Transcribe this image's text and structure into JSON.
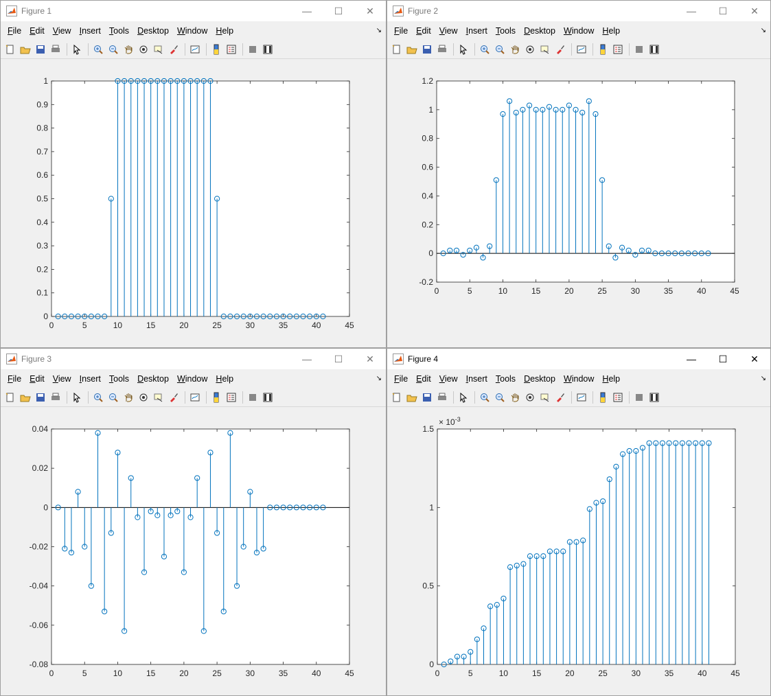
{
  "menu": [
    "File",
    "Edit",
    "View",
    "Insert",
    "Tools",
    "Desktop",
    "Window",
    "Help"
  ],
  "window_controls": {
    "minimize": "—",
    "maximize": "☐",
    "close": "✕"
  },
  "toolbar_icons": [
    "new-figure-icon",
    "open-file-icon",
    "save-icon",
    "print-icon",
    "|",
    "pointer-icon",
    "|",
    "zoom-in-icon",
    "zoom-out-icon",
    "pan-icon",
    "rotate-icon",
    "data-cursor-icon",
    "brush-icon",
    "|",
    "link-plot-icon",
    "|",
    "colorbar-icon",
    "legend-icon",
    "|",
    "hide-plot-tools-icon",
    "show-plot-tools-icon"
  ],
  "colors": {
    "stem": "#0072BD",
    "axis": "#262626",
    "baseline": "#000000"
  },
  "figures": [
    {
      "title": "Figure 1",
      "active": false,
      "chart_data": {
        "type": "stem",
        "x_start": 1,
        "xlim": [
          0,
          45
        ],
        "ylim": [
          0,
          1
        ],
        "xticks": [
          0,
          5,
          10,
          15,
          20,
          25,
          30,
          35,
          40,
          45
        ],
        "yticks": [
          0,
          0.1,
          0.2,
          0.3,
          0.4,
          0.5,
          0.6,
          0.7,
          0.8,
          0.9,
          1
        ],
        "ytick_labels": [
          "0",
          "0.1",
          "0.2",
          "0.3",
          "0.4",
          "0.5",
          "0.6",
          "0.7",
          "0.8",
          "0.9",
          "1"
        ],
        "exponent_label": "",
        "values": [
          0,
          0,
          0,
          0,
          0,
          0,
          0,
          0,
          0.5,
          1,
          1,
          1,
          1,
          1,
          1,
          1,
          1,
          1,
          1,
          1,
          1,
          1,
          1,
          1,
          0.5,
          0,
          0,
          0,
          0,
          0,
          0,
          0,
          0,
          0,
          0,
          0,
          0,
          0,
          0,
          0,
          0
        ]
      }
    },
    {
      "title": "Figure 2",
      "active": false,
      "chart_data": {
        "type": "stem",
        "x_start": 1,
        "xlim": [
          0,
          45
        ],
        "ylim": [
          -0.2,
          1.2
        ],
        "xticks": [
          0,
          5,
          10,
          15,
          20,
          25,
          30,
          35,
          40,
          45
        ],
        "yticks": [
          -0.2,
          0,
          0.2,
          0.4,
          0.6,
          0.8,
          1,
          1.2
        ],
        "ytick_labels": [
          "-0.2",
          "0",
          "0.2",
          "0.4",
          "0.6",
          "0.8",
          "1",
          "1.2"
        ],
        "exponent_label": "",
        "values": [
          0,
          0.02,
          0.02,
          -0.01,
          0.02,
          0.04,
          -0.03,
          0.05,
          0.51,
          0.97,
          1.06,
          0.98,
          1.0,
          1.03,
          1.0,
          1.0,
          1.02,
          1.0,
          1.0,
          1.03,
          1.0,
          0.98,
          1.06,
          0.97,
          0.51,
          0.05,
          -0.03,
          0.04,
          0.02,
          -0.01,
          0.02,
          0.02,
          0,
          0,
          0,
          0,
          0,
          0,
          0,
          0,
          0
        ]
      }
    },
    {
      "title": "Figure 3",
      "active": false,
      "chart_data": {
        "type": "stem",
        "x_start": 1,
        "xlim": [
          0,
          45
        ],
        "ylim": [
          -0.08,
          0.04
        ],
        "xticks": [
          0,
          5,
          10,
          15,
          20,
          25,
          30,
          35,
          40,
          45
        ],
        "yticks": [
          -0.08,
          -0.06,
          -0.04,
          -0.02,
          0,
          0.02,
          0.04
        ],
        "ytick_labels": [
          "-0.08",
          "-0.06",
          "-0.04",
          "-0.02",
          "0",
          "0.02",
          "0.04"
        ],
        "exponent_label": "",
        "values": [
          0,
          -0.021,
          -0.023,
          0.008,
          -0.02,
          -0.04,
          0.038,
          -0.053,
          -0.013,
          0.028,
          -0.063,
          0.015,
          -0.005,
          -0.033,
          -0.002,
          -0.004,
          -0.025,
          -0.004,
          -0.002,
          -0.033,
          -0.005,
          0.015,
          -0.063,
          0.028,
          -0.013,
          -0.053,
          0.038,
          -0.04,
          -0.02,
          0.008,
          -0.023,
          -0.021,
          0,
          0,
          0,
          0,
          0,
          0,
          0,
          0,
          0
        ]
      }
    },
    {
      "title": "Figure 4",
      "active": true,
      "chart_data": {
        "type": "stem",
        "x_start": 1,
        "xlim": [
          0,
          45
        ],
        "ylim": [
          0,
          0.0015
        ],
        "xticks": [
          0,
          5,
          10,
          15,
          20,
          25,
          30,
          35,
          40,
          45
        ],
        "yticks": [
          0,
          0.0005,
          0.001,
          0.0015
        ],
        "ytick_labels": [
          "0",
          "0.5",
          "1",
          "1.5"
        ],
        "exponent_label": "× 10",
        "exponent_power": "-3",
        "values": [
          0,
          2e-05,
          5e-05,
          5e-05,
          8e-05,
          0.00016,
          0.00023,
          0.00037,
          0.00038,
          0.00042,
          0.00062,
          0.00063,
          0.00064,
          0.00069,
          0.00069,
          0.00069,
          0.00072,
          0.00072,
          0.00072,
          0.00078,
          0.00078,
          0.00079,
          0.00099,
          0.00103,
          0.00104,
          0.00118,
          0.00126,
          0.00134,
          0.00136,
          0.00136,
          0.00138,
          0.00141,
          0.00141,
          0.00141,
          0.00141,
          0.00141,
          0.00141,
          0.00141,
          0.00141,
          0.00141,
          0.00141
        ]
      }
    }
  ]
}
